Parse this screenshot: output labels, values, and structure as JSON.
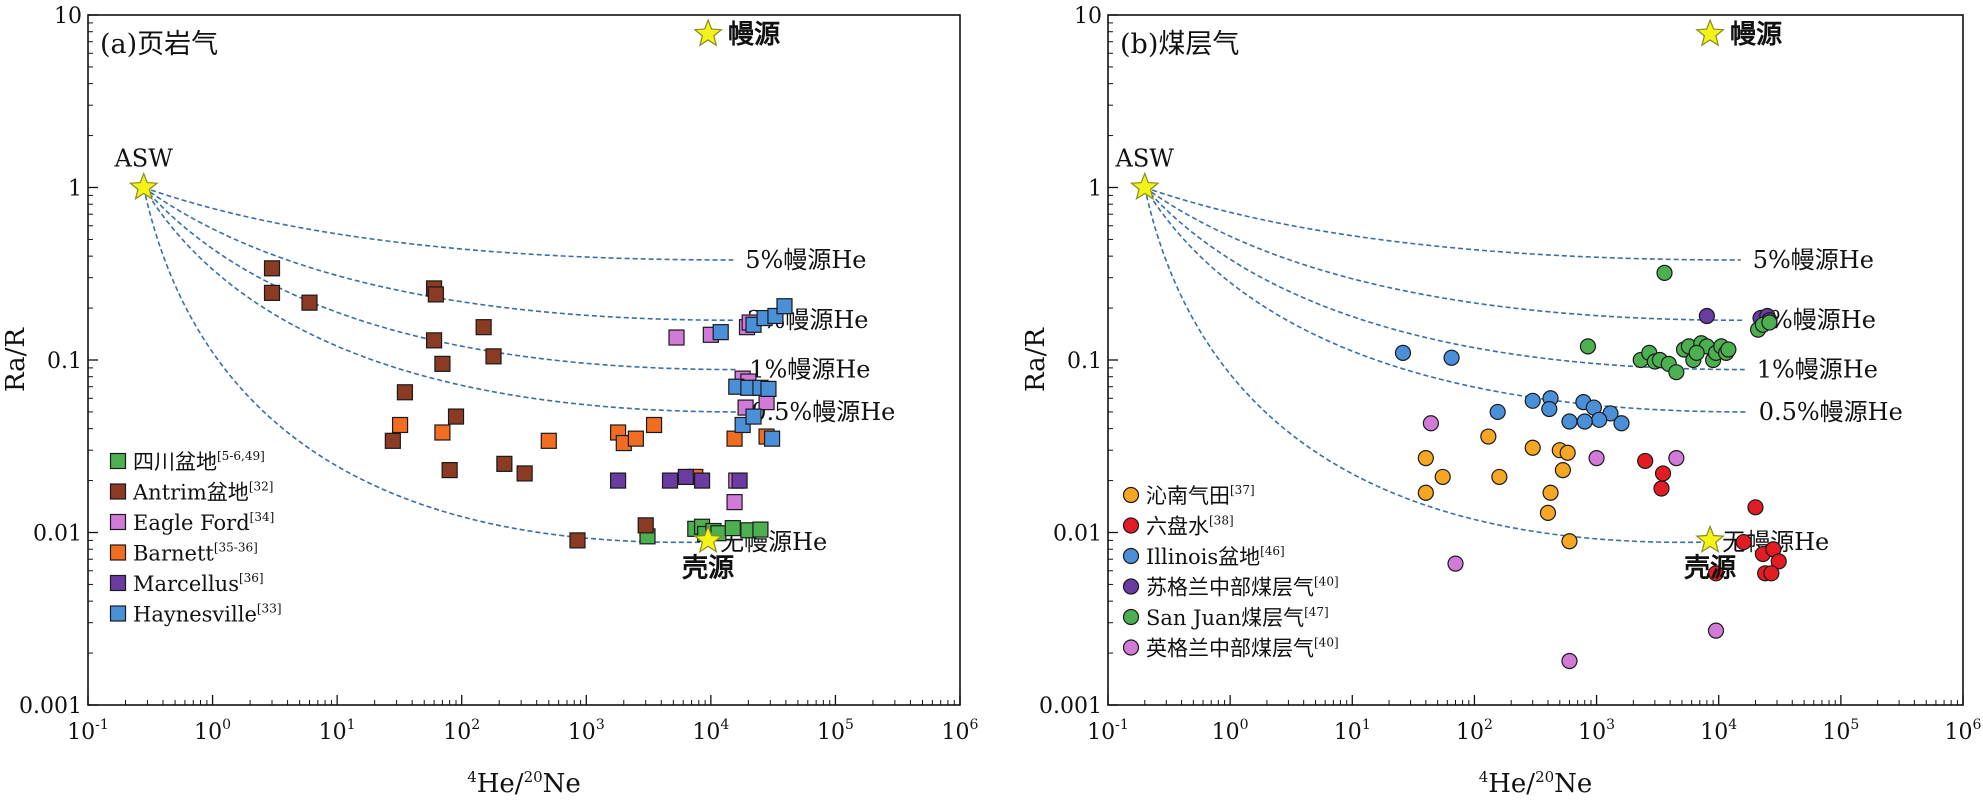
{
  "chart_data": [
    {
      "type": "scatter",
      "panel_label": "(a)页岩气",
      "xlabel": "4He/20Ne",
      "ylabel": "Ra/R",
      "x_scale": "log",
      "y_scale": "log",
      "xlim": [
        0.1,
        1000000
      ],
      "ylim": [
        0.001,
        10
      ],
      "x_tick_labels": [
        "10-1",
        "100",
        "101",
        "102",
        "103",
        "104",
        "105",
        "106"
      ],
      "y_tick_labels": [
        "0.001",
        "0.01",
        "0.1",
        "1",
        "10"
      ],
      "grid": false,
      "legend_placement": "bottom-left",
      "marker": "square",
      "reference_points": [
        {
          "label": "ASW",
          "x": 0.28,
          "y": 1
        },
        {
          "label": "幔源",
          "x": 9500,
          "y": 10
        },
        {
          "label": "壳源",
          "x": 9500,
          "y": 0.009
        }
      ],
      "mixing_curves": [
        {
          "label": "5%幔源He",
          "end_y": 0.38
        },
        {
          "label": "2%幔源He",
          "end_y": 0.17
        },
        {
          "label": "1%幔源He",
          "end_y": 0.088
        },
        {
          "label": "0.5%幔源He",
          "end_y": 0.05
        },
        {
          "label": "无幔源He",
          "end_y": 0.0088
        }
      ],
      "series": [
        {
          "name": "四川盆地",
          "ref": "[5-6,49]",
          "color": "#4caf50",
          "points": [
            [
              3100,
              0.0095
            ],
            [
              7500,
              0.0105
            ],
            [
              8500,
              0.0108
            ],
            [
              9000,
              0.0098
            ],
            [
              10500,
              0.0102
            ],
            [
              11500,
              0.0099
            ],
            [
              15000,
              0.0106
            ],
            [
              20000,
              0.0103
            ],
            [
              25000,
              0.0104
            ]
          ]
        },
        {
          "name": "Antrim盆地",
          "ref": "[32]",
          "color": "#8b3a23",
          "points": [
            [
              3,
              0.34
            ],
            [
              3,
              0.245
            ],
            [
              6,
              0.215
            ],
            [
              60,
              0.26
            ],
            [
              62,
              0.24
            ],
            [
              60,
              0.13
            ],
            [
              70,
              0.095
            ],
            [
              150,
              0.155
            ],
            [
              180,
              0.105
            ],
            [
              35,
              0.065
            ],
            [
              90,
              0.047
            ],
            [
              28,
              0.034
            ],
            [
              80,
              0.023
            ],
            [
              220,
              0.025
            ],
            [
              320,
              0.022
            ],
            [
              850,
              0.009
            ],
            [
              3000,
              0.011
            ]
          ]
        },
        {
          "name": "Eagle Ford",
          "ref": "[34]",
          "color": "#d27ad8",
          "points": [
            [
              5300,
              0.135
            ],
            [
              10000,
              0.14
            ],
            [
              19500,
              0.155
            ],
            [
              20500,
              0.165
            ],
            [
              18000,
              0.078
            ],
            [
              20000,
              0.075
            ],
            [
              19000,
              0.053
            ],
            [
              28000,
              0.057
            ],
            [
              16000,
              0.02
            ],
            [
              15500,
              0.015
            ]
          ]
        },
        {
          "name": "Barnett",
          "ref": "[35-36]",
          "color": "#f26d21",
          "points": [
            [
              32,
              0.042
            ],
            [
              70,
              0.038
            ],
            [
              500,
              0.034
            ],
            [
              1800,
              0.038
            ],
            [
              2000,
              0.033
            ],
            [
              2500,
              0.035
            ],
            [
              3500,
              0.042
            ],
            [
              7500,
              0.021
            ],
            [
              15500,
              0.035
            ],
            [
              28000,
              0.036
            ]
          ]
        },
        {
          "name": "Marcellus",
          "ref": "[36]",
          "color": "#6a3ba0",
          "points": [
            [
              1800,
              0.02
            ],
            [
              4700,
              0.02
            ],
            [
              6300,
              0.021
            ],
            [
              8500,
              0.02
            ],
            [
              17000,
              0.02
            ]
          ]
        },
        {
          "name": "Haynesville",
          "ref": "[33]",
          "color": "#4a90d9",
          "points": [
            [
              12000,
              0.145
            ],
            [
              22000,
              0.16
            ],
            [
              27000,
              0.175
            ],
            [
              33000,
              0.18
            ],
            [
              39000,
              0.205
            ],
            [
              16000,
              0.07
            ],
            [
              20000,
              0.069
            ],
            [
              25000,
              0.069
            ],
            [
              29000,
              0.068
            ],
            [
              18000,
              0.042
            ],
            [
              22000,
              0.047
            ],
            [
              31000,
              0.035
            ]
          ]
        }
      ]
    },
    {
      "type": "scatter",
      "panel_label": "(b)煤层气",
      "xlabel": "4He/20Ne",
      "ylabel": "Ra/R",
      "x_scale": "log",
      "y_scale": "log",
      "xlim": [
        0.1,
        1000000
      ],
      "ylim": [
        0.001,
        10
      ],
      "x_tick_labels": [
        "10-1",
        "100",
        "101",
        "102",
        "103",
        "104",
        "105",
        "106"
      ],
      "y_tick_labels": [
        "0.001",
        "0.01",
        "0.1",
        "1",
        "10"
      ],
      "grid": false,
      "legend_placement": "bottom-left",
      "marker": "circle",
      "reference_points": [
        {
          "label": "ASW",
          "x": 0.2,
          "y": 1
        },
        {
          "label": "幔源",
          "x": 8500,
          "y": 10
        },
        {
          "label": "壳源",
          "x": 8500,
          "y": 0.009
        }
      ],
      "mixing_curves": [
        {
          "label": "5%幔源He",
          "end_y": 0.38
        },
        {
          "label": "2%幔源He",
          "end_y": 0.17
        },
        {
          "label": "1%幔源He",
          "end_y": 0.088
        },
        {
          "label": "0.5%幔源He",
          "end_y": 0.05
        },
        {
          "label": "无幔源He",
          "end_y": 0.0088
        }
      ],
      "series": [
        {
          "name": "沁南气田",
          "ref": "[37]",
          "color": "#f5a623",
          "points": [
            [
              130,
              0.036
            ],
            [
              300,
              0.031
            ],
            [
              500,
              0.03
            ],
            [
              580,
              0.029
            ],
            [
              40,
              0.027
            ],
            [
              530,
              0.023
            ],
            [
              55,
              0.021
            ],
            [
              160,
              0.021
            ],
            [
              420,
              0.017
            ],
            [
              40,
              0.017
            ],
            [
              400,
              0.013
            ],
            [
              600,
              0.0089
            ]
          ]
        },
        {
          "name": "六盘水",
          "ref": "[38]",
          "color": "#e31b23",
          "points": [
            [
              2500,
              0.026
            ],
            [
              3500,
              0.022
            ],
            [
              3400,
              0.018
            ],
            [
              20000,
              0.014
            ],
            [
              16000,
              0.0088
            ],
            [
              23000,
              0.0075
            ],
            [
              28000,
              0.008
            ],
            [
              31000,
              0.0068
            ],
            [
              24000,
              0.0058
            ],
            [
              27000,
              0.0058
            ],
            [
              9500,
              0.0058
            ]
          ]
        },
        {
          "name": "Illinois盆地",
          "ref": "[46]",
          "color": "#4a90d9",
          "points": [
            [
              26,
              0.11
            ],
            [
              65,
              0.103
            ],
            [
              420,
              0.06
            ],
            [
              300,
              0.058
            ],
            [
              155,
              0.05
            ],
            [
              410,
              0.052
            ],
            [
              780,
              0.057
            ],
            [
              950,
              0.053
            ],
            [
              1300,
              0.049
            ],
            [
              600,
              0.044
            ],
            [
              1050,
              0.045
            ],
            [
              800,
              0.044
            ],
            [
              1600,
              0.043
            ]
          ]
        },
        {
          "name": "苏格兰中部煤层气",
          "ref": "[40]",
          "color": "#6a3ba0",
          "points": [
            [
              8000,
              0.18
            ],
            [
              22000,
              0.175
            ],
            [
              25000,
              0.18
            ],
            [
              26000,
              0.17
            ]
          ]
        },
        {
          "name": "San Juan煤层气",
          "ref": "[47]",
          "color": "#4caf50",
          "points": [
            [
              3600,
              0.32
            ],
            [
              850,
              0.12
            ],
            [
              2300,
              0.1
            ],
            [
              2700,
              0.11
            ],
            [
              3000,
              0.098
            ],
            [
              3300,
              0.1
            ],
            [
              3900,
              0.095
            ],
            [
              4500,
              0.085
            ],
            [
              5200,
              0.115
            ],
            [
              5700,
              0.12
            ],
            [
              6200,
              0.1
            ],
            [
              7200,
              0.125
            ],
            [
              8000,
              0.12
            ],
            [
              9000,
              0.1
            ],
            [
              9500,
              0.11
            ],
            [
              10500,
              0.12
            ],
            [
              11500,
              0.11
            ],
            [
              12000,
              0.115
            ],
            [
              6600,
              0.11
            ],
            [
              21000,
              0.15
            ],
            [
              23000,
              0.16
            ],
            [
              26000,
              0.165
            ]
          ]
        },
        {
          "name": "英格兰中部煤层气",
          "ref": "[40]",
          "color": "#d27ad8",
          "points": [
            [
              44,
              0.043
            ],
            [
              1000,
              0.027
            ],
            [
              4500,
              0.027
            ],
            [
              70,
              0.0066
            ],
            [
              9500,
              0.0027
            ],
            [
              600,
              0.0018
            ]
          ]
        }
      ]
    }
  ]
}
